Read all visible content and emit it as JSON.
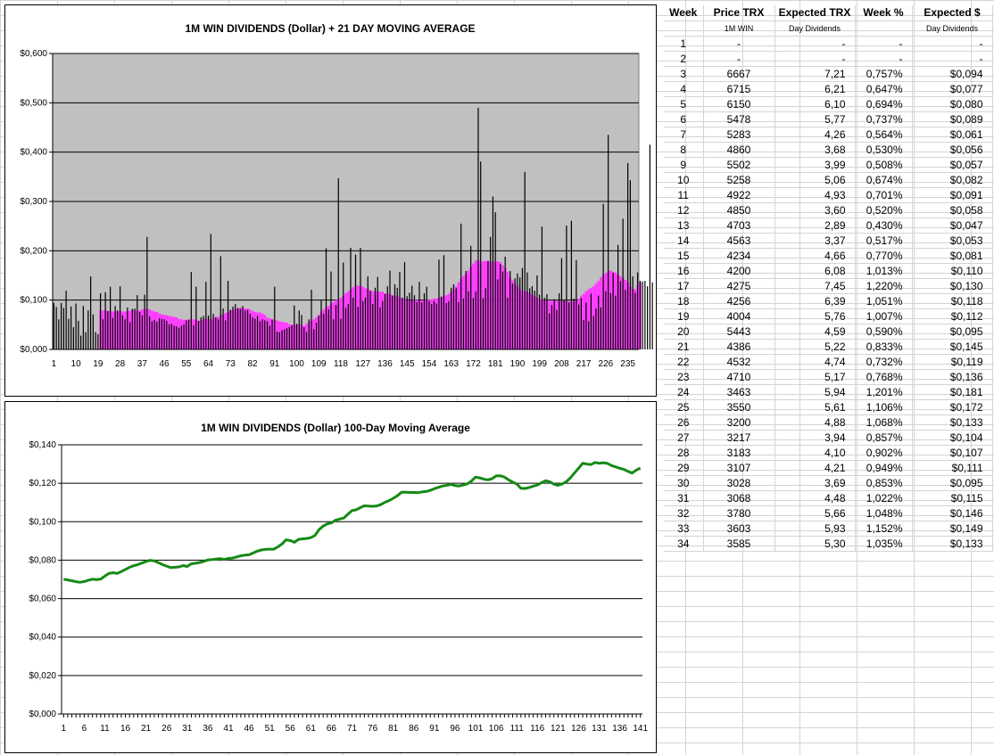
{
  "charts": [
    {
      "title": "1M WIN DIVIDENDS (Dollar) + 21 DAY MOVING AVERAGE",
      "y_ticks": [
        "$0,000",
        "$0,100",
        "$0,200",
        "$0,300",
        "$0,400",
        "$0,500",
        "$0,600"
      ],
      "x_ticks": [
        "1",
        "10",
        "19",
        "28",
        "37",
        "46",
        "55",
        "64",
        "73",
        "82",
        "91",
        "100",
        "109",
        "118",
        "127",
        "136",
        "145",
        "154",
        "163",
        "172",
        "181",
        "190",
        "199",
        "208",
        "217",
        "226",
        "235"
      ]
    },
    {
      "title": "1M WIN DIVIDENDS (Dollar) 100-Day Moving Average",
      "y_ticks": [
        "$0,000",
        "$0,020",
        "$0,040",
        "$0,060",
        "$0,080",
        "$0,100",
        "$0,120",
        "$0,140"
      ],
      "x_ticks": [
        "1",
        "6",
        "11",
        "16",
        "21",
        "26",
        "31",
        "36",
        "41",
        "46",
        "51",
        "56",
        "61",
        "66",
        "71",
        "76",
        "81",
        "86",
        "91",
        "96",
        "101",
        "106",
        "111",
        "116",
        "121",
        "126",
        "131",
        "136",
        "141"
      ]
    }
  ],
  "chart_data": [
    {
      "type": "bar",
      "title": "1M WIN DIVIDENDS (Dollar) + 21 DAY MOVING AVERAGE",
      "ylim": [
        0,
        0.6
      ],
      "x_range": [
        1,
        239
      ],
      "grid": true,
      "series": [
        {
          "color": "#000000",
          "values": [
            0.094,
            0.086,
            0.061,
            0.094,
            0.084,
            0.119,
            0.062,
            0.087,
            0.045,
            0.093,
            0.058,
            0.028,
            0.088,
            0.035,
            0.079,
            0.148,
            0.071,
            0.035,
            0.031,
            0.114,
            0.061,
            0.116,
            0.078,
            0.127,
            0.064,
            0.088,
            0.079,
            0.128,
            0.069,
            0.061,
            0.085,
            0.055,
            0.082,
            0.083,
            0.11,
            0.076,
            0.069,
            0.111,
            0.228,
            0.067,
            0.057,
            0.06,
            0.056,
            0.063,
            0.062,
            0.061,
            0.058,
            0.051,
            0.052,
            0.048,
            0.047,
            0.044,
            0.048,
            0.051,
            0.059,
            0.06,
            0.157,
            0.049,
            0.127,
            0.058,
            0.065,
            0.068,
            0.137,
            0.069,
            0.234,
            0.072,
            0.065,
            0.061,
            0.189,
            0.083,
            0.059,
            0.139,
            0.08,
            0.087,
            0.092,
            0.084,
            0.082,
            0.088,
            0.079,
            0.08,
            0.072,
            0.065,
            0.062,
            0.068,
            0.057,
            0.061,
            0.059,
            0.057,
            0.048,
            0.06,
            0.127,
            0.036,
            0.035,
            0.039,
            0.041,
            0.043,
            0.045,
            0.049,
            0.089,
            0.052,
            0.079,
            0.07,
            0.045,
            0.035,
            0.061,
            0.121,
            0.041,
            0.054,
            0.068,
            0.1,
            0.072,
            0.205,
            0.081,
            0.158,
            0.061,
            0.09,
            0.347,
            0.062,
            0.176,
            0.084,
            0.092,
            0.206,
            0.105,
            0.192,
            0.086,
            0.206,
            0.098,
            0.105,
            0.148,
            0.119,
            0.092,
            0.125,
            0.147,
            0.085,
            0.098,
            0.112,
            0.128,
            0.16,
            0.109,
            0.132,
            0.125,
            0.157,
            0.105,
            0.177,
            0.108,
            0.115,
            0.129,
            0.11,
            0.096,
            0.137,
            0.095,
            0.114,
            0.127,
            0.098,
            0.092,
            0.098,
            0.093,
            0.182,
            0.107,
            0.191,
            0.094,
            0.098,
            0.125,
            0.132,
            0.124,
            0.096,
            0.255,
            0.103,
            0.159,
            0.118,
            0.21,
            0.104,
            0.117,
            0.49,
            0.381,
            0.104,
            0.124,
            0.179,
            0.228,
            0.31,
            0.278,
            0.142,
            0.173,
            0.158,
            0.188,
            0.105,
            0.159,
            0.133,
            0.144,
            0.154,
            0.146,
            0.165,
            0.36,
            0.156,
            0.124,
            0.128,
            0.119,
            0.15,
            0.111,
            0.249,
            0.105,
            0.112,
            0.073,
            0.09,
            0.102,
            0.08,
            0.114,
            0.185,
            0.1,
            0.251,
            0.095,
            0.261,
            0.103,
            0.181,
            0.091,
            0.104,
            0.06,
            0.095,
            0.057,
            0.113,
            0.068,
            0.083,
            0.109,
            0.085,
            0.295,
            0.118,
            0.435,
            0.114,
            0.155,
            0.109,
            0.212,
            0.138,
            0.265,
            0.121,
            0.378,
            0.343,
            0.148,
            0.115,
            0.156,
            0.139,
            0.138,
            0.139,
            0.128,
            0.415,
            0.136
          ]
        },
        {
          "name": "21 DAY MOVING AVERAGE",
          "color": "#ff3cff",
          "values": [
            null,
            null,
            null,
            null,
            null,
            null,
            null,
            null,
            null,
            null,
            null,
            null,
            null,
            null,
            null,
            null,
            null,
            null,
            null,
            0.08,
            0.079,
            0.08,
            0.077,
            0.078,
            0.077,
            0.077,
            0.077,
            0.078,
            0.077,
            0.077,
            0.077,
            0.078,
            0.081,
            0.079,
            0.078,
            0.079,
            0.081,
            0.082,
            0.083,
            0.081,
            0.079,
            0.077,
            0.076,
            0.073,
            0.071,
            0.07,
            0.069,
            0.068,
            0.067,
            0.066,
            0.065,
            0.062,
            0.061,
            0.06,
            0.06,
            0.061,
            0.061,
            0.061,
            0.06,
            0.058,
            0.06,
            0.061,
            0.062,
            0.062,
            0.061,
            0.062,
            0.066,
            0.066,
            0.07,
            0.071,
            0.074,
            0.076,
            0.08,
            0.08,
            0.083,
            0.083,
            0.085,
            0.084,
            0.083,
            0.083,
            0.081,
            0.078,
            0.076,
            0.075,
            0.075,
            0.073,
            0.07,
            0.065,
            0.063,
            0.062,
            0.059,
            0.059,
            0.057,
            0.056,
            0.055,
            0.054,
            0.051,
            0.05,
            0.05,
            0.05,
            0.051,
            0.049,
            0.048,
            0.052,
            0.056,
            0.058,
            0.061,
            0.065,
            0.07,
            0.075,
            0.081,
            0.086,
            0.088,
            0.093,
            0.096,
            0.1,
            0.101,
            0.105,
            0.109,
            0.114,
            0.118,
            0.121,
            0.126,
            0.13,
            0.129,
            0.129,
            0.127,
            0.124,
            0.123,
            0.12,
            0.118,
            0.117,
            0.118,
            0.117,
            0.117,
            0.114,
            0.113,
            0.112,
            0.11,
            0.109,
            0.108,
            0.105,
            0.104,
            0.103,
            0.1,
            0.1,
            0.1,
            0.102,
            0.1,
            0.1,
            0.099,
            0.1,
            0.101,
            0.101,
            0.101,
            0.103,
            0.103,
            0.105,
            0.107,
            0.108,
            0.11,
            0.113,
            0.117,
            0.122,
            0.128,
            0.136,
            0.143,
            0.149,
            0.154,
            0.16,
            0.167,
            0.174,
            0.18,
            0.181,
            0.178,
            0.179,
            0.179,
            0.18,
            0.177,
            0.179,
            0.177,
            0.179,
            0.177,
            0.171,
            0.165,
            0.158,
            0.147,
            0.14,
            0.134,
            0.128,
            0.122,
            0.118,
            0.119,
            0.117,
            0.114,
            0.111,
            0.108,
            0.105,
            0.102,
            0.101,
            0.1,
            0.098,
            0.098,
            0.098,
            0.1,
            0.099,
            0.097,
            0.098,
            0.098,
            0.1,
            0.098,
            0.096,
            0.097,
            0.099,
            0.103,
            0.109,
            0.113,
            0.118,
            0.122,
            0.125,
            0.128,
            0.134,
            0.139,
            0.146,
            0.151,
            0.155,
            0.158,
            0.16,
            0.157,
            0.156,
            0.152,
            0.148,
            0.145,
            0.141,
            0.135,
            0.128,
            0.122,
            0.122,
            0.128,
            0.136
          ]
        }
      ]
    },
    {
      "type": "line",
      "title": "1M WIN DIVIDENDS (Dollar) 100-Day Moving Average",
      "ylim": [
        0,
        0.14
      ],
      "x_range": [
        1,
        141
      ],
      "grid": true,
      "series": [
        {
          "color": "#158a15",
          "values": [
            0.0701,
            0.0697,
            0.0693,
            0.0688,
            0.0685,
            0.0689,
            0.0696,
            0.0701,
            0.0699,
            0.0702,
            0.0717,
            0.0731,
            0.0735,
            0.0731,
            0.0741,
            0.0752,
            0.0763,
            0.0771,
            0.0777,
            0.0785,
            0.0793,
            0.0799,
            0.0796,
            0.0787,
            0.0777,
            0.0769,
            0.0761,
            0.0763,
            0.0765,
            0.0772,
            0.0767,
            0.0781,
            0.0784,
            0.0788,
            0.0793,
            0.0801,
            0.0803,
            0.0806,
            0.0808,
            0.0804,
            0.0809,
            0.0811,
            0.0817,
            0.0823,
            0.0826,
            0.0828,
            0.0837,
            0.0847,
            0.0853,
            0.0856,
            0.0857,
            0.0857,
            0.0869,
            0.0884,
            0.0906,
            0.0902,
            0.0893,
            0.0908,
            0.0911,
            0.0913,
            0.0917,
            0.0928,
            0.0959,
            0.0977,
            0.0989,
            0.0994,
            0.1008,
            0.1014,
            0.1019,
            0.1039,
            0.1058,
            0.1062,
            0.1073,
            0.1083,
            0.1081,
            0.108,
            0.1082,
            0.1089,
            0.1101,
            0.111,
            0.1122,
            0.1135,
            0.1153,
            0.1154,
            0.1152,
            0.1152,
            0.1151,
            0.1155,
            0.1157,
            0.1163,
            0.1172,
            0.1179,
            0.1186,
            0.1189,
            0.1194,
            0.1188,
            0.1186,
            0.1191,
            0.1197,
            0.1212,
            0.1232,
            0.1228,
            0.1221,
            0.1218,
            0.1224,
            0.1238,
            0.1239,
            0.1232,
            0.1218,
            0.1206,
            0.1196,
            0.1174,
            0.1173,
            0.1178,
            0.1185,
            0.1191,
            0.1203,
            0.1213,
            0.1208,
            0.1195,
            0.1189,
            0.1196,
            0.1208,
            0.1228,
            0.1253,
            0.1278,
            0.1304,
            0.13,
            0.1297,
            0.1308,
            0.1304,
            0.1307,
            0.1303,
            0.1292,
            0.1285,
            0.1278,
            0.1272,
            0.1262,
            0.1253,
            0.1269,
            0.1279
          ]
        }
      ]
    }
  ],
  "table": {
    "headers": [
      "Week",
      "Price TRX",
      "Expected TRX",
      "Week %",
      "Expected $"
    ],
    "subheaders": [
      "",
      "1M WIN",
      "Day Dividends",
      "",
      "Day Dividends"
    ],
    "rows": [
      [
        "1",
        "-",
        "-",
        "-",
        "-"
      ],
      [
        "2",
        "-",
        "-",
        "-",
        "-"
      ],
      [
        "3",
        "6667",
        "7,21",
        "0,757%",
        "$0,094"
      ],
      [
        "4",
        "6715",
        "6,21",
        "0,647%",
        "$0,077"
      ],
      [
        "5",
        "6150",
        "6,10",
        "0,694%",
        "$0,080"
      ],
      [
        "6",
        "5478",
        "5,77",
        "0,737%",
        "$0,089"
      ],
      [
        "7",
        "5283",
        "4,26",
        "0,564%",
        "$0,061"
      ],
      [
        "8",
        "4860",
        "3,68",
        "0,530%",
        "$0,056"
      ],
      [
        "9",
        "5502",
        "3,99",
        "0,508%",
        "$0,057"
      ],
      [
        "10",
        "5258",
        "5,06",
        "0,674%",
        "$0,082"
      ],
      [
        "11",
        "4922",
        "4,93",
        "0,701%",
        "$0,091"
      ],
      [
        "12",
        "4850",
        "3,60",
        "0,520%",
        "$0,058"
      ],
      [
        "13",
        "4703",
        "2,89",
        "0,430%",
        "$0,047"
      ],
      [
        "14",
        "4563",
        "3,37",
        "0,517%",
        "$0,053"
      ],
      [
        "15",
        "4234",
        "4,66",
        "0,770%",
        "$0,081"
      ],
      [
        "16",
        "4200",
        "6,08",
        "1,013%",
        "$0,110"
      ],
      [
        "17",
        "4275",
        "7,45",
        "1,220%",
        "$0,130"
      ],
      [
        "18",
        "4256",
        "6,39",
        "1,051%",
        "$0,118"
      ],
      [
        "19",
        "4004",
        "5,76",
        "1,007%",
        "$0,112"
      ],
      [
        "20",
        "5443",
        "4,59",
        "0,590%",
        "$0,095"
      ],
      [
        "21",
        "4386",
        "5,22",
        "0,833%",
        "$0,145"
      ],
      [
        "22",
        "4532",
        "4,74",
        "0,732%",
        "$0,119"
      ],
      [
        "23",
        "4710",
        "5,17",
        "0,768%",
        "$0,136"
      ],
      [
        "24",
        "3463",
        "5,94",
        "1,201%",
        "$0,181"
      ],
      [
        "25",
        "3550",
        "5,61",
        "1,106%",
        "$0,172"
      ],
      [
        "26",
        "3200",
        "4,88",
        "1,068%",
        "$0,133"
      ],
      [
        "27",
        "3217",
        "3,94",
        "0,857%",
        "$0,104"
      ],
      [
        "28",
        "3183",
        "4,10",
        "0,902%",
        "$0,107"
      ],
      [
        "29",
        "3107",
        "4,21",
        "0,949%",
        "$0,111"
      ],
      [
        "30",
        "3028",
        "3,69",
        "0,853%",
        "$0,095"
      ],
      [
        "31",
        "3068",
        "4,48",
        "1,022%",
        "$0,115"
      ],
      [
        "32",
        "3780",
        "5,66",
        "1,048%",
        "$0,146"
      ],
      [
        "33",
        "3603",
        "5,93",
        "1,152%",
        "$0,149"
      ],
      [
        "34",
        "3585",
        "5,30",
        "1,035%",
        "$0,133"
      ]
    ]
  }
}
